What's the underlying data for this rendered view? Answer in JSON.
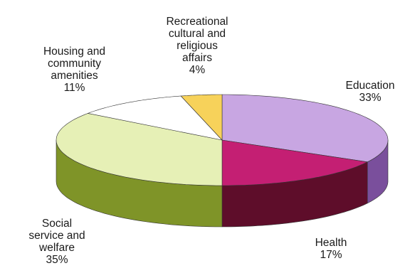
{
  "chart_data": {
    "type": "pie",
    "style": "3d",
    "slices": [
      {
        "label": "Education",
        "value": 33,
        "display": "33%",
        "color": "#c8a6e2",
        "side_color": "#7a4f9c"
      },
      {
        "label": "Health",
        "value": 17,
        "display": "17%",
        "color": "#c41f73",
        "side_color": "#5e0d2a"
      },
      {
        "label": "Social\nservice and\nwelfare",
        "value": 35,
        "display": "35%",
        "color": "#e6f0b6",
        "side_color": "#7f9428"
      },
      {
        "label": "Housing and\ncommunity\namenities",
        "value": 11,
        "display": "11%",
        "color": "#ffffff",
        "side_color": "#ffffff"
      },
      {
        "label": "Recreational\ncultural and\nreligious\naffairs",
        "value": 4,
        "display": "4%",
        "color": "#f7d25a",
        "side_color": "#caa32e"
      }
    ]
  }
}
